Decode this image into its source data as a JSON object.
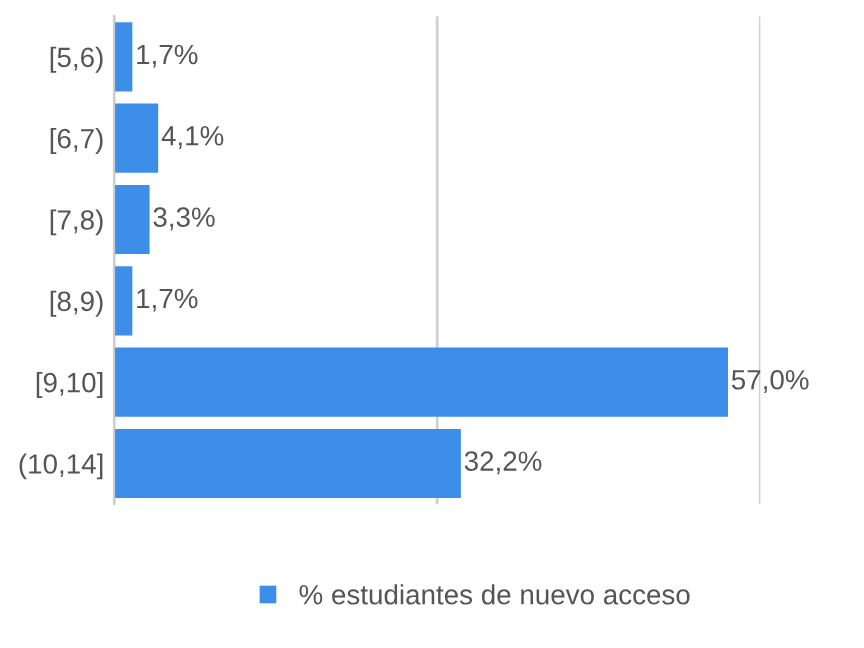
{
  "chart_data": {
    "type": "bar",
    "orientation": "horizontal",
    "categories": [
      "[5,6)",
      "[6,7)",
      "[7,8)",
      "[8,9)",
      "[9,10]",
      "(10,14]"
    ],
    "series": [
      {
        "name": "% estudiantes de nuevo acceso",
        "color": "#3d8ee8",
        "values": [
          1.7,
          4.1,
          3.3,
          1.7,
          57.0,
          32.2
        ],
        "value_labels": [
          "1,7%",
          "4,1%",
          "3,3%",
          "1,7%",
          "57,0%",
          "32,2%"
        ]
      }
    ],
    "xlim": [
      0,
      60
    ],
    "xticks": [
      {
        "value": 0,
        "label": null
      },
      {
        "value": 30,
        "label": null
      },
      {
        "value": 60,
        "label": null
      }
    ],
    "tick_labels": "y",
    "grid": "x",
    "legend": "bottom"
  }
}
